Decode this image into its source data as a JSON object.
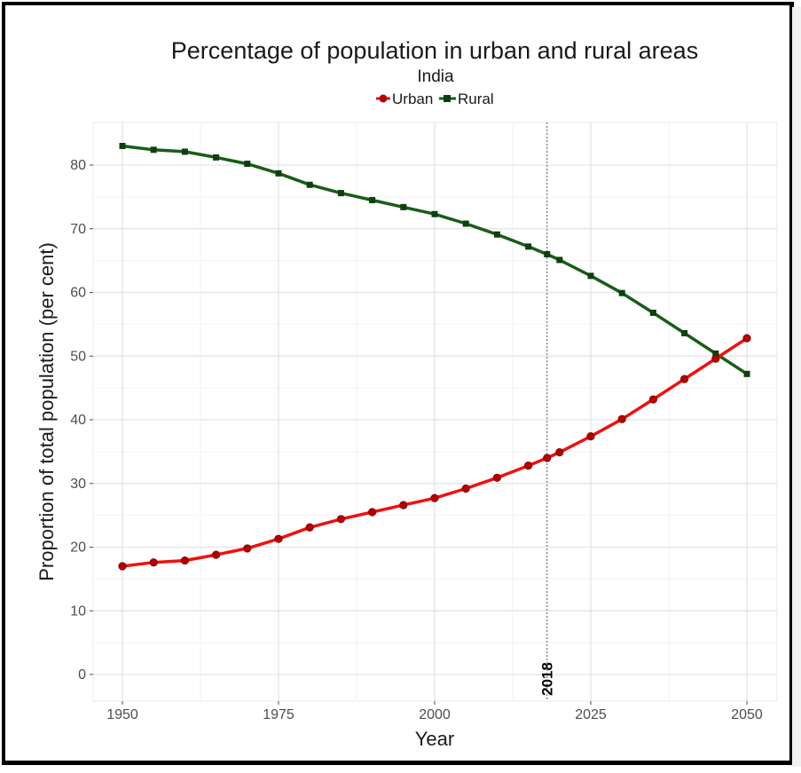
{
  "chart_data": {
    "type": "line",
    "title": "Percentage of population in urban and rural areas",
    "subtitle": "India",
    "xlabel": "Year",
    "ylabel": "Proportion of total population (per cent)",
    "xlim": [
      1950,
      2050
    ],
    "ylim": [
      0,
      85
    ],
    "x_ticks": [
      "1950",
      "1975",
      "2000",
      "2025",
      "2050"
    ],
    "y_ticks": [
      "0",
      "10",
      "20",
      "30",
      "40",
      "50",
      "60",
      "70",
      "80"
    ],
    "grid": true,
    "legend_position": "top",
    "annotation": {
      "label": "2018",
      "x": 2018,
      "style": "dotted vertical line"
    },
    "x": [
      1950,
      1955,
      1960,
      1965,
      1970,
      1975,
      1980,
      1985,
      1990,
      1995,
      2000,
      2005,
      2010,
      2015,
      2018,
      2020,
      2025,
      2030,
      2035,
      2040,
      2045,
      2050
    ],
    "series": [
      {
        "name": "Urban",
        "color": "#ee1111",
        "marker_color": "#b30000",
        "values": [
          17.0,
          17.6,
          17.9,
          18.8,
          19.8,
          21.3,
          23.1,
          24.4,
          25.5,
          26.6,
          27.7,
          29.2,
          30.9,
          32.8,
          34.0,
          34.9,
          37.4,
          40.1,
          43.2,
          46.4,
          49.6,
          52.8
        ]
      },
      {
        "name": "Rural",
        "color": "#1a5c1a",
        "marker_color": "#0d400d",
        "values": [
          83.0,
          82.4,
          82.1,
          81.2,
          80.2,
          78.7,
          76.9,
          75.6,
          74.5,
          73.4,
          72.3,
          70.8,
          69.1,
          67.2,
          66.0,
          65.1,
          62.6,
          59.9,
          56.8,
          53.6,
          50.4,
          47.2
        ]
      }
    ]
  }
}
